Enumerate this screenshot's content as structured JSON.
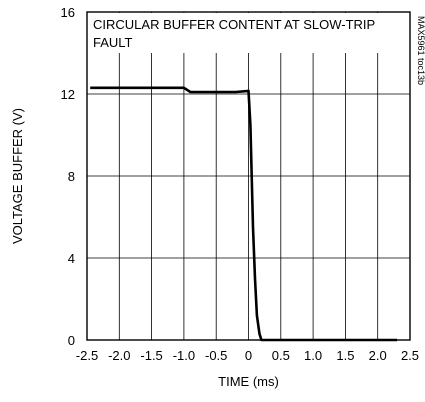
{
  "chart_data": {
    "type": "line",
    "title_lines": [
      "CIRCULAR BUFFER CONTENT AT SLOW-TRIP",
      "FAULT"
    ],
    "side_label": "MAX5961 toc13b",
    "xlabel": "TIME (ms)",
    "ylabel": "VOLTAGE BUFFER (V)",
    "xlim": [
      -2.5,
      2.5
    ],
    "ylim": [
      0,
      16
    ],
    "x_ticks": [
      -2.5,
      -2.0,
      -1.5,
      -1.0,
      -0.5,
      0,
      0.5,
      1.0,
      1.5,
      2.0,
      2.5
    ],
    "x_tick_labels": [
      "-2.5",
      "-2.0",
      "-1.5",
      "-1.0",
      "-0.5",
      "0",
      "0.5",
      "1.0",
      "1.5",
      "2.0",
      "2.5"
    ],
    "y_ticks": [
      0,
      4,
      8,
      12,
      16
    ],
    "y_tick_labels": [
      "0",
      "4",
      "8",
      "12",
      "16"
    ],
    "grid": true,
    "series": [
      {
        "x": [
          -2.45,
          -2.0,
          -1.5,
          -1.2,
          -1.1,
          -1.0,
          -0.9,
          -0.5,
          -0.2,
          0.0,
          0.03,
          0.05,
          0.07,
          0.1,
          0.13,
          0.17,
          0.2,
          0.3,
          1.0,
          2.0,
          2.3
        ],
        "y": [
          12.3,
          12.3,
          12.3,
          12.3,
          12.3,
          12.3,
          12.1,
          12.1,
          12.1,
          12.15,
          10.5,
          8.0,
          5.5,
          3.0,
          1.2,
          0.3,
          0.0,
          0.0,
          0.0,
          0.0,
          0.0
        ]
      }
    ]
  }
}
